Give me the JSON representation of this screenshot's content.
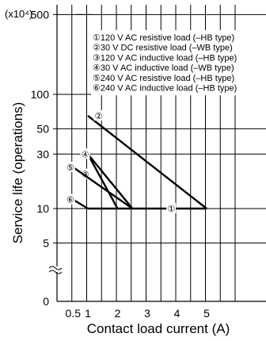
{
  "chart_data": {
    "type": "line",
    "unit_label": "(x10⁴)",
    "xlabel": "Contact load current (A)",
    "ylabel": "Service life  (operations)",
    "x_ticks": [
      "0.5",
      "1",
      "2",
      "3",
      "4",
      "5"
    ],
    "y_ticks": [
      "500",
      "100",
      "50",
      "30",
      "10",
      "5"
    ],
    "y_zero_label": "0",
    "y_scale": "log",
    "grid": true,
    "legend_placement": "top-right",
    "series": [
      {
        "mark": "①",
        "name": "①120 V AC resistive load (–HB type)",
        "points": [
          [
            1,
            10
          ],
          [
            5,
            10
          ]
        ],
        "label_at": [
          3.7,
          10
        ]
      },
      {
        "mark": "②",
        "name": "②30 V DC resistive load (–WB type)",
        "points": [
          [
            1,
            65
          ],
          [
            5,
            10
          ]
        ],
        "label_at": [
          1.25,
          65
        ]
      },
      {
        "mark": "③",
        "name": "③120 V AC inductive load (–HB type)",
        "points": [
          [
            1,
            30
          ],
          [
            2.5,
            10
          ]
        ],
        "label_at": [
          0.8,
          20
        ]
      },
      {
        "mark": "④",
        "name": "④30 V AC inductive load (–WB type)",
        "points": [
          [
            1,
            30
          ],
          [
            2,
            10
          ]
        ],
        "label_at": [
          0.8,
          30
        ]
      },
      {
        "mark": "⑤",
        "name": "⑤240 V AC resistive load (–HB type)",
        "points": [
          [
            0.5,
            23
          ],
          [
            2.5,
            10
          ]
        ],
        "label_at": [
          0.3,
          23
        ]
      },
      {
        "mark": "⑥",
        "name": "⑥240 V AC inductive load (–HB type)",
        "points": [
          [
            0.5,
            12
          ],
          [
            1,
            10
          ]
        ],
        "label_at": [
          0.3,
          12
        ]
      }
    ]
  }
}
